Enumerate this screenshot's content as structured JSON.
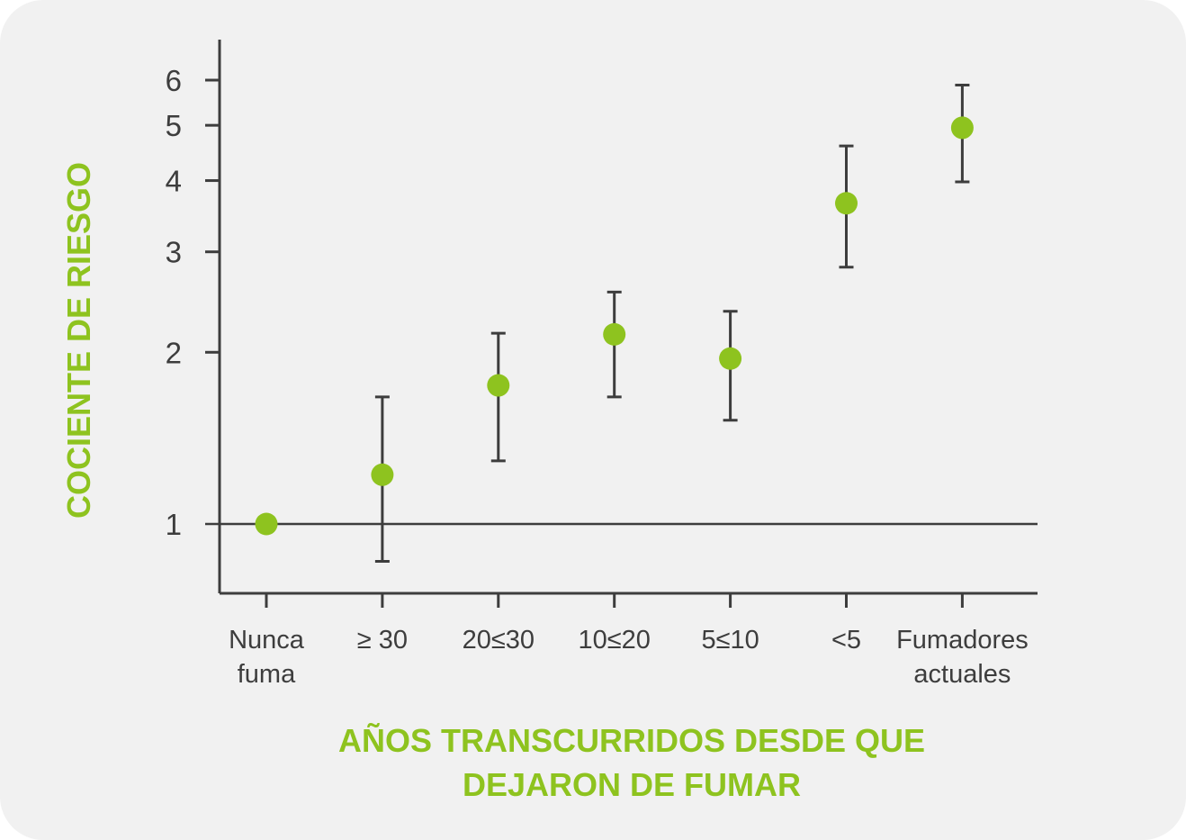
{
  "chart_data": {
    "type": "scatter",
    "ylabel": "COCIENTE DE RIESGO",
    "xlabel_lines": [
      "AÑOS TRANSCURRIDOS DESDE QUE",
      "DEJARON DE FUMAR"
    ],
    "categories": [
      [
        "Nunca",
        "fuma"
      ],
      [
        "≥ 30"
      ],
      [
        "20≤30"
      ],
      [
        "10≤20"
      ],
      [
        "5≤10"
      ],
      [
        "<5"
      ],
      [
        "Fumadores",
        "actuales"
      ]
    ],
    "y_scale": "log",
    "y_ticks": [
      1,
      2,
      3,
      4,
      5,
      6
    ],
    "ylim": [
      0.85,
      6.8
    ],
    "reference_line": 1,
    "values": [
      1.0,
      1.22,
      1.75,
      2.15,
      1.95,
      3.65,
      4.95
    ],
    "ci_low": [
      null,
      0.86,
      1.29,
      1.67,
      1.52,
      2.82,
      3.98
    ],
    "ci_high": [
      null,
      1.67,
      2.16,
      2.55,
      2.36,
      4.6,
      5.88
    ],
    "colors": {
      "point": "#8ec31f",
      "axis": "#3d3d3d",
      "title": "#8ec31f"
    }
  }
}
